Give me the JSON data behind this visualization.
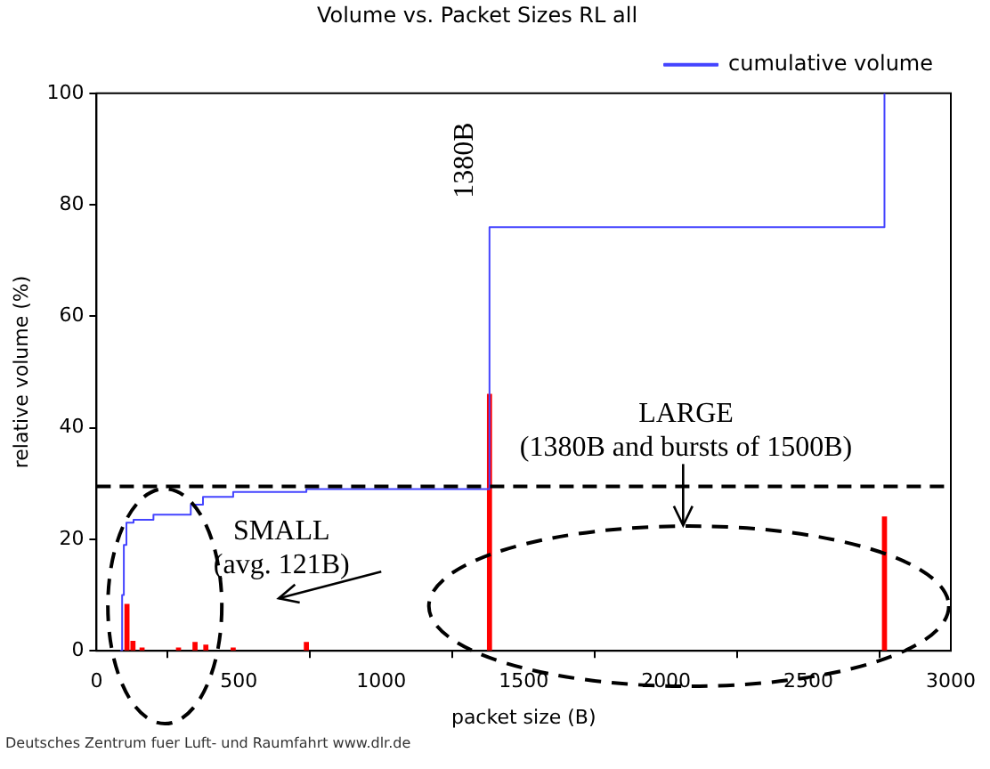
{
  "chart_data": {
    "type": "step",
    "title": "Volume vs. Packet Sizes RL all",
    "xlabel": "packet size (B)",
    "ylabel": "relative volume (%)",
    "xlim": [
      0,
      3000
    ],
    "xticks": [
      0,
      500,
      1000,
      1500,
      2000,
      2500,
      3000
    ],
    "ylim": [
      0,
      100
    ],
    "yticks": [
      0,
      20,
      40,
      60,
      80,
      100
    ],
    "grid": false,
    "legend": "top right",
    "series": [
      {
        "name": "cumulative volume",
        "color": "#4444ff",
        "x": [
          83,
          90,
          96,
          105,
          130,
          200,
          331,
          374,
          480,
          737,
          1380,
          2767
        ],
        "values": [
          0,
          10,
          19,
          23,
          23.5,
          24.4,
          26.2,
          27.6,
          28.5,
          29,
          76,
          100
        ]
      },
      {
        "type": "bar",
        "color": "#ff0000",
        "x": [
          107,
          128,
          160,
          288,
          346,
          384,
          480,
          737,
          1380,
          2767
        ],
        "values": [
          8.3,
          1.7,
          0.5,
          0.5,
          1.5,
          1,
          0.5,
          1.5,
          46,
          24
        ]
      }
    ],
    "ref_lines": [
      {
        "axis": "y",
        "value": 29.5,
        "color": "#000000",
        "line_style": "dashed"
      }
    ],
    "annotations": [
      "1380B",
      "SMALL\n(avg. 121B)",
      "LARGE\n(1380B and bursts of 1500B)",
      "Deutsches Zentrum fuer Luft- und Raumfahrt www.dlr.de"
    ]
  }
}
